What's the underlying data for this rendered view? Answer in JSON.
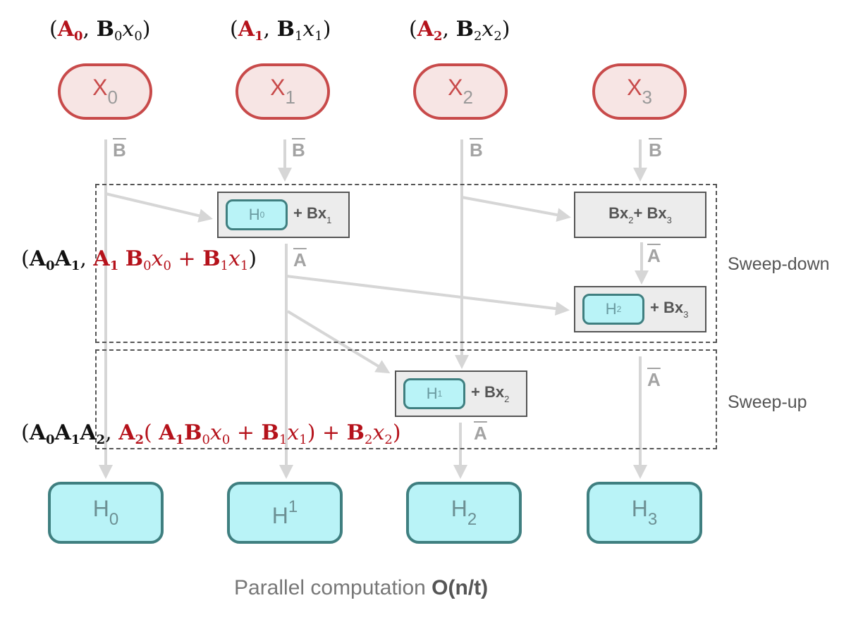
{
  "tuples": [
    {
      "A": "A",
      "sub": "0",
      "B": "B",
      "bsub": "0",
      "x": "x",
      "xsub": "0"
    },
    {
      "A": "A",
      "sub": "1",
      "B": "B",
      "bsub": "1",
      "x": "x",
      "xsub": "1"
    },
    {
      "A": "A",
      "sub": "2",
      "B": "B",
      "bsub": "2",
      "x": "x",
      "xsub": "2"
    }
  ],
  "inputs": [
    {
      "label": "X",
      "sub": "0"
    },
    {
      "label": "X",
      "sub": "1"
    },
    {
      "label": "X",
      "sub": "2"
    },
    {
      "label": "X",
      "sub": "3"
    }
  ],
  "edge_labels": {
    "B": "B",
    "A": "A"
  },
  "boxes": {
    "box1": {
      "mini": "H",
      "mini_sub": "0",
      "plus": "+ Bx",
      "plus_sub": "1"
    },
    "box2": {
      "text1": "Bx",
      "sub1": "2",
      "text2": "+ Bx",
      "sub2": "3"
    },
    "box3": {
      "mini": "H",
      "mini_sub": "2",
      "plus": "+ Bx",
      "plus_sub": "3"
    },
    "box4": {
      "mini": "H",
      "mini_sub": "1",
      "plus": "+ Bx",
      "plus_sub": "2"
    }
  },
  "regions": {
    "sweep_down": "Sweep-down",
    "sweep_up": "Sweep-up"
  },
  "outputs": [
    {
      "label": "H",
      "sub": "0",
      "sup": ""
    },
    {
      "label": "H",
      "sub": "",
      "sup": "1"
    },
    {
      "label": "H",
      "sub": "2",
      "sup": ""
    },
    {
      "label": "H",
      "sub": "3",
      "sup": ""
    }
  ],
  "caption": {
    "text": "Parallel computation",
    "bold": "O(n/t)"
  },
  "colors": {
    "red": "#b5121b",
    "node_red": "#c84a4a",
    "teal": "#3f7f80",
    "cyan_fill": "#b9f3f7",
    "arrow_gray": "#d6d6d6"
  }
}
